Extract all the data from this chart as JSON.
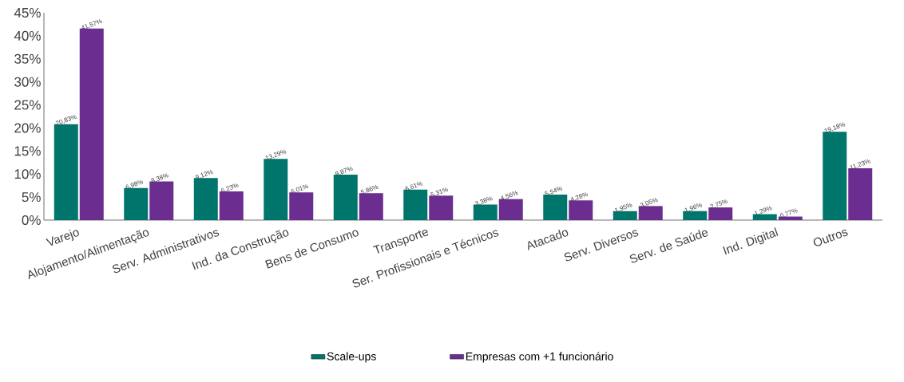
{
  "chart_data": {
    "type": "bar",
    "categories": [
      "Varejo",
      "Alojamento/Alimentação",
      "Serv. Administrativos",
      "Ind. da Construção",
      "Bens de Consumo",
      "Transporte",
      "Ser. Profissionais e Técnicos",
      "Atacado",
      "Serv. Diversos",
      "Serv. de Saúde",
      "Ind. Digital",
      "Outros"
    ],
    "series": [
      {
        "name": "Scale-ups",
        "color": "#00756b",
        "values": [
          20.83,
          6.98,
          9.12,
          13.29,
          9.87,
          6.61,
          3.38,
          5.54,
          1.95,
          1.96,
          1.29,
          19.18
        ],
        "value_labels": [
          "20,83%",
          "6,98%",
          "9,12%",
          "13,29%",
          "9,87%",
          "6,61%",
          "3,38%",
          "5,54%",
          "1,95%",
          "1,96%",
          "1,29%",
          "19,18%"
        ]
      },
      {
        "name": "Empresas com +1 funcionário",
        "color": "#6b2d8f",
        "values": [
          41.57,
          8.38,
          6.23,
          6.01,
          5.86,
          5.31,
          4.56,
          4.28,
          3.05,
          2.75,
          0.77,
          11.23
        ],
        "value_labels": [
          "41,57%",
          "8,38%",
          "6,23%",
          "6,01%",
          "5,86%",
          "5,31%",
          "4,56%",
          "4,28%",
          "3,05%",
          "2,75%",
          "0,77%",
          "11,23%"
        ]
      }
    ],
    "ylim": [
      0,
      45
    ],
    "yticks": [
      {
        "value": 0,
        "label": "0%"
      },
      {
        "value": 5,
        "label": "5%"
      },
      {
        "value": 10,
        "label": "10%"
      },
      {
        "value": 15,
        "label": "15%"
      },
      {
        "value": 20,
        "label": "20%"
      },
      {
        "value": 25,
        "label": "25%"
      },
      {
        "value": 30,
        "label": "30%"
      },
      {
        "value": 35,
        "label": "35%"
      },
      {
        "value": 40,
        "label": "40%"
      },
      {
        "value": 45,
        "label": "45%"
      }
    ],
    "grid": false,
    "legend": "bottom"
  }
}
